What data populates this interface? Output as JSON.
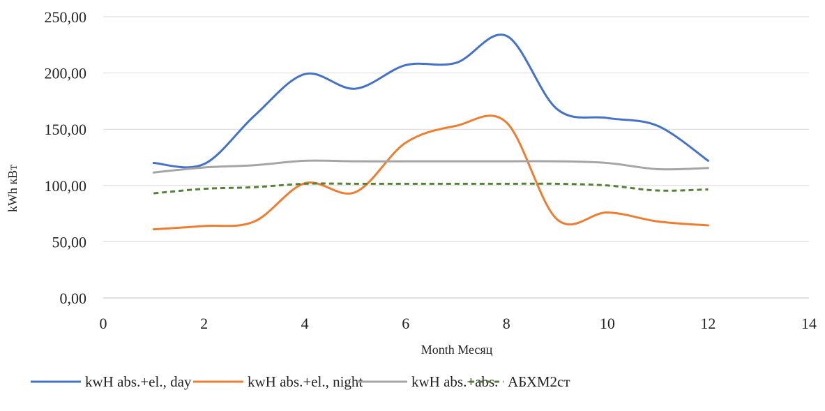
{
  "chart_data": {
    "type": "line",
    "xlabel": "Month Месяц",
    "ylabel": "kWh кВт",
    "xlim": [
      0,
      14
    ],
    "ylim": [
      0,
      250
    ],
    "x_ticks": [
      "0",
      "2",
      "4",
      "6",
      "8",
      "10",
      "12",
      "14"
    ],
    "y_ticks": [
      "0,00",
      "50,00",
      "100,00",
      "150,00",
      "200,00",
      "250,00"
    ],
    "grid": "horizontal",
    "legend_position": "bottom",
    "smooth": true,
    "x": [
      1,
      2,
      3,
      4,
      5,
      6,
      7,
      8,
      9,
      10,
      11,
      12
    ],
    "series": [
      {
        "name": "kwH abs.+el., day",
        "color": "#4472C4",
        "dash": "solid",
        "values": [
          120,
          119,
          162,
          199,
          186,
          207,
          209,
          233,
          168,
          160,
          153,
          122
        ]
      },
      {
        "name": "kwH abs.+el., night",
        "color": "#ED7D31",
        "dash": "solid",
        "values": [
          61,
          64,
          68,
          102,
          94,
          138,
          153,
          156,
          70,
          76,
          68,
          64.5
        ]
      },
      {
        "name": "kwH abs.+abs.",
        "color": "#A5A5A5",
        "dash": "solid",
        "values": [
          111.5,
          116,
          118,
          122,
          121.5,
          121.5,
          121.5,
          121.5,
          121.5,
          120,
          114.5,
          115.5
        ]
      },
      {
        "name": "АБХМ2ст",
        "color": "#548235",
        "dash": "dashed",
        "values": [
          93,
          97,
          98.5,
          101.5,
          101.5,
          101.5,
          101.5,
          101.5,
          101.5,
          100,
          95.5,
          96.5
        ]
      }
    ]
  }
}
